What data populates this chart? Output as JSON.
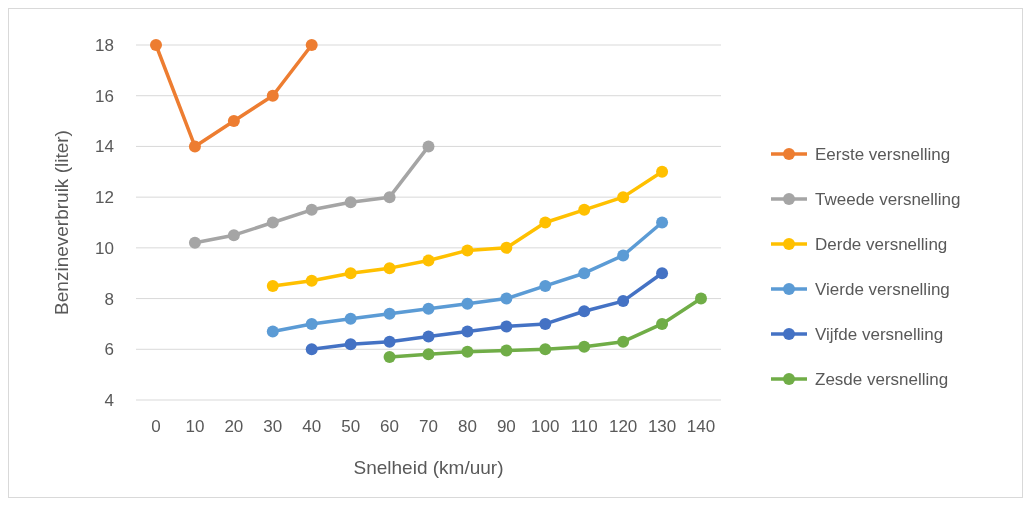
{
  "chart_data": {
    "type": "line",
    "xlabel": "Snelheid (km/uur)",
    "ylabel": "Benzineverbruik (liter)",
    "categories": [
      "0",
      "10",
      "20",
      "30",
      "40",
      "50",
      "60",
      "70",
      "80",
      "90",
      "100",
      "110",
      "120",
      "130",
      "140"
    ],
    "series": [
      {
        "name": "Eerste versnelling",
        "color": "#ed7d31",
        "values": [
          18,
          14,
          15,
          16,
          18,
          null,
          null,
          null,
          null,
          null,
          null,
          null,
          null,
          null,
          null
        ]
      },
      {
        "name": "Tweede versnelling",
        "color": "#a5a5a5",
        "values": [
          null,
          10.2,
          10.5,
          11,
          11.5,
          11.8,
          12,
          14,
          null,
          null,
          null,
          null,
          null,
          null,
          null
        ]
      },
      {
        "name": "Derde versnelling",
        "color": "#ffc000",
        "values": [
          null,
          null,
          null,
          8.5,
          8.7,
          9,
          9.2,
          9.5,
          9.9,
          10,
          11,
          11.5,
          12,
          13,
          null
        ]
      },
      {
        "name": "Vierde versnelling",
        "color": "#5b9bd5",
        "values": [
          null,
          null,
          null,
          6.7,
          7,
          7.2,
          7.4,
          7.6,
          7.8,
          8,
          8.5,
          9,
          9.7,
          11,
          null
        ]
      },
      {
        "name": "Vijfde versnelling",
        "color": "#4472c4",
        "values": [
          null,
          null,
          null,
          null,
          6,
          6.2,
          6.3,
          6.5,
          6.7,
          6.9,
          7,
          7.5,
          7.9,
          9,
          null
        ]
      },
      {
        "name": "Zesde versnelling",
        "color": "#70ad47",
        "values": [
          null,
          null,
          null,
          null,
          null,
          null,
          5.7,
          5.8,
          5.9,
          5.95,
          6,
          6.1,
          6.3,
          7,
          8
        ]
      }
    ],
    "ylim": [
      4,
      18
    ],
    "yticks": [
      4,
      6,
      8,
      10,
      12,
      14,
      16,
      18
    ],
    "grid": "y",
    "legend": "right",
    "marker": "circle",
    "line_style": "solid"
  }
}
